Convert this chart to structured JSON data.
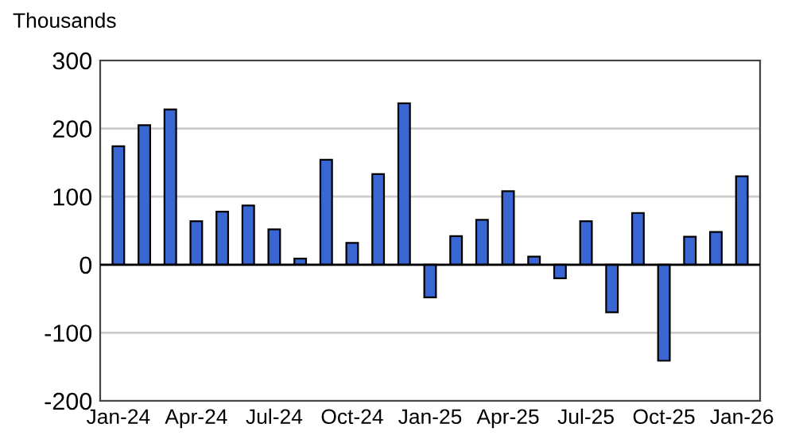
{
  "chart_data": {
    "type": "bar",
    "ylabel": "Thousands",
    "categories": [
      "Jan-24",
      null,
      null,
      "Apr-24",
      null,
      null,
      "Jul-24",
      null,
      null,
      "Oct-24",
      null,
      null,
      "Jan-25",
      null,
      null,
      "Apr-25",
      null,
      null,
      "Jul-25",
      null,
      null,
      "Oct-25",
      null,
      null,
      "Jan-26"
    ],
    "values": [
      174,
      205,
      228,
      64,
      78,
      87,
      52,
      9,
      154,
      32,
      133,
      237,
      -48,
      42,
      66,
      108,
      12,
      -20,
      64,
      -70,
      76,
      -141,
      41,
      48,
      130
    ],
    "color": "#3a66d4",
    "ylim": [
      -200,
      300
    ],
    "yticks": [
      -200,
      -100,
      0,
      100,
      200,
      300
    ],
    "grid": "y"
  }
}
